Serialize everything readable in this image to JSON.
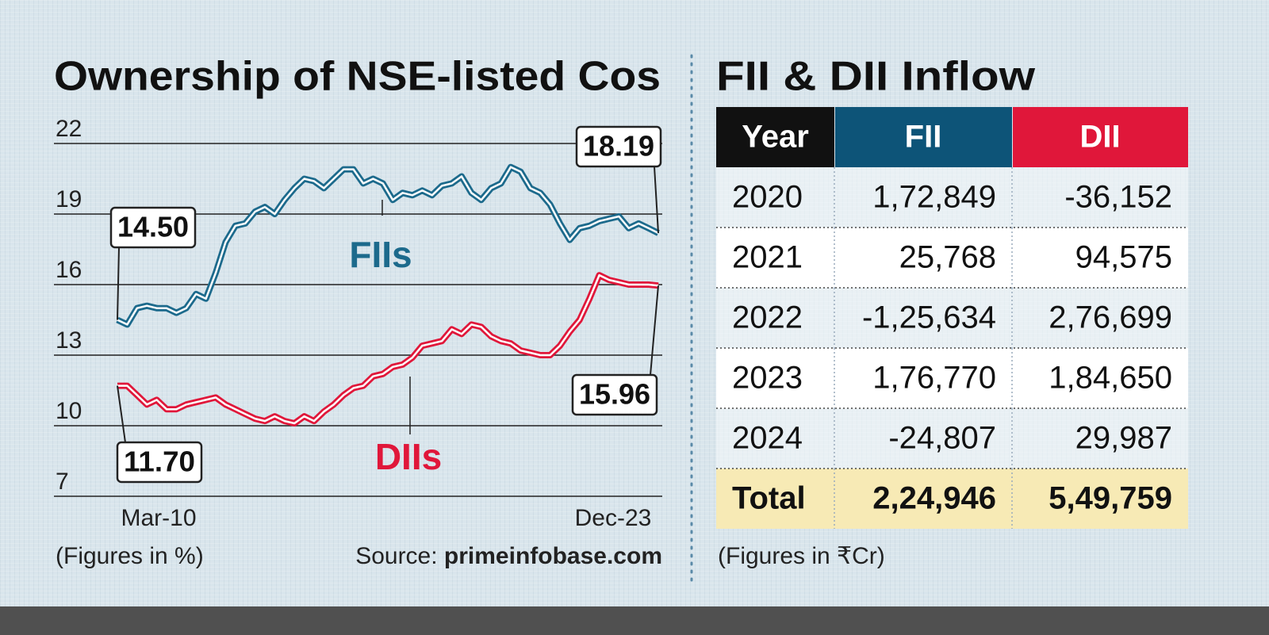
{
  "chart_data": {
    "type": "line",
    "title": "Ownership of NSE-listed Cos",
    "categories": [
      "Mar-10",
      null,
      null,
      null,
      null,
      null,
      null,
      null,
      null,
      null,
      null,
      null,
      null,
      null,
      null,
      null,
      null,
      null,
      null,
      null,
      null,
      null,
      null,
      null,
      null,
      null,
      null,
      null,
      null,
      null,
      null,
      null,
      null,
      null,
      null,
      null,
      null,
      null,
      null,
      null,
      null,
      null,
      null,
      null,
      null,
      null,
      null,
      null,
      null,
      null,
      null,
      null,
      null,
      null,
      null,
      "Dec-23"
    ],
    "series": [
      {
        "name": "FIIs",
        "color": "#1c6a8c",
        "values": [
          14.5,
          14.3,
          15.0,
          15.1,
          15.0,
          15.0,
          14.8,
          15.0,
          15.6,
          15.4,
          16.5,
          17.8,
          18.5,
          18.6,
          19.1,
          19.3,
          19.0,
          19.6,
          20.1,
          20.5,
          20.4,
          20.1,
          20.5,
          20.9,
          20.9,
          20.3,
          20.5,
          20.3,
          19.6,
          19.9,
          19.8,
          20.0,
          19.8,
          20.2,
          20.3,
          20.6,
          19.9,
          19.6,
          20.1,
          20.3,
          21.0,
          20.8,
          20.1,
          19.9,
          19.4,
          18.6,
          17.9,
          18.4,
          18.5,
          18.7,
          18.8,
          18.9,
          18.4,
          18.6,
          18.4,
          18.19
        ],
        "value_labels": [
          "14.50",
          null,
          null,
          null,
          null,
          null,
          null,
          null,
          null,
          null,
          null,
          null,
          null,
          null,
          null,
          null,
          null,
          null,
          null,
          null,
          null,
          null,
          null,
          null,
          null,
          null,
          null,
          null,
          null,
          null,
          null,
          null,
          null,
          null,
          null,
          null,
          null,
          null,
          null,
          null,
          null,
          null,
          null,
          null,
          null,
          null,
          null,
          null,
          null,
          null,
          null,
          null,
          null,
          null,
          null,
          "18.19"
        ]
      },
      {
        "name": "DIIs",
        "color": "#e0173a",
        "values": [
          11.7,
          11.7,
          11.3,
          10.9,
          11.1,
          10.7,
          10.7,
          10.9,
          11.0,
          11.1,
          11.2,
          10.9,
          10.7,
          10.5,
          10.3,
          10.2,
          10.4,
          10.2,
          10.1,
          10.4,
          10.2,
          10.6,
          10.9,
          11.3,
          11.6,
          11.7,
          12.1,
          12.2,
          12.5,
          12.6,
          12.9,
          13.4,
          13.5,
          13.6,
          14.1,
          13.9,
          14.3,
          14.2,
          13.8,
          13.6,
          13.5,
          13.2,
          13.1,
          13.0,
          13.0,
          13.4,
          14.0,
          14.5,
          15.4,
          16.4,
          16.2,
          16.1,
          16.0,
          16.0,
          16.0,
          15.96
        ],
        "value_labels": [
          "11.70",
          null,
          null,
          null,
          null,
          null,
          null,
          null,
          null,
          null,
          null,
          null,
          null,
          null,
          null,
          null,
          null,
          null,
          null,
          null,
          null,
          null,
          null,
          null,
          null,
          null,
          null,
          null,
          null,
          null,
          null,
          null,
          null,
          null,
          null,
          null,
          null,
          null,
          null,
          null,
          null,
          null,
          null,
          null,
          null,
          null,
          null,
          null,
          null,
          null,
          null,
          null,
          null,
          null,
          null,
          "15.96"
        ]
      }
    ],
    "ylim": [
      7,
      22
    ],
    "yticks": [
      7,
      10,
      13,
      16,
      19,
      22
    ],
    "grid": true,
    "note": "(Figures in %)",
    "source_prefix": "Source:",
    "source": "primeinfobase.com"
  },
  "table": {
    "title": "FII & DII Inflow",
    "columns": [
      "Year",
      "FII",
      "DII"
    ],
    "rows": [
      [
        "2020",
        "1,72,849",
        "-36,152"
      ],
      [
        "2021",
        "25,768",
        "94,575"
      ],
      [
        "2022",
        "-1,25,634",
        "2,76,699"
      ],
      [
        "2023",
        "1,76,770",
        "1,84,650"
      ],
      [
        "2024",
        "-24,807",
        "29,987"
      ]
    ],
    "total": [
      "Total",
      "2,24,946",
      "5,49,759"
    ],
    "note": "(Figures in ₹Cr)"
  }
}
